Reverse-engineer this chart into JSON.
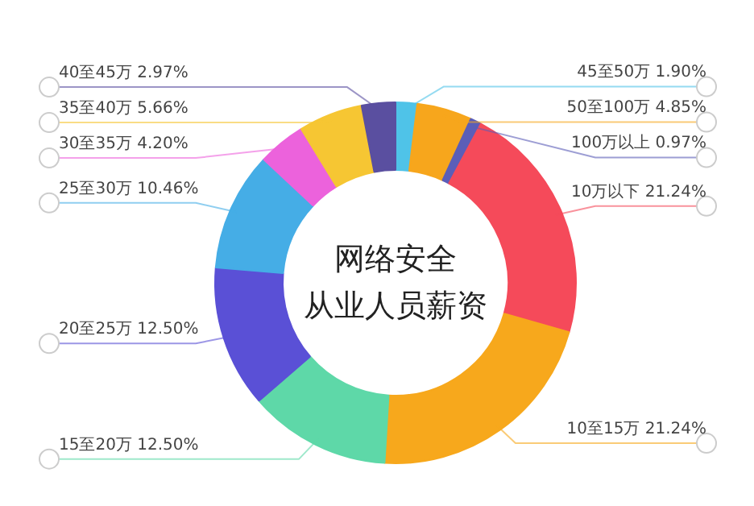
{
  "chart_data": {
    "type": "donut",
    "title": "网络安全从业人员薪资",
    "categories": [
      "45至50万",
      "50至100万",
      "100万以上",
      "10万以下",
      "10至15万",
      "15至20万",
      "20至25万",
      "25至30万",
      "30至35万",
      "35至40万",
      "40至45万"
    ],
    "values": [
      1.9,
      4.85,
      0.97,
      21.24,
      21.24,
      12.5,
      12.5,
      10.46,
      4.2,
      5.66,
      2.97
    ],
    "value_labels": [
      "1.90%",
      "4.85%",
      "0.97%",
      "21.24%",
      "21.24%",
      "12.50%",
      "12.50%",
      "10.46%",
      "4.20%",
      "5.66%",
      "2.97%"
    ],
    "colors": [
      "#4fc3e8",
      "#f7a61c",
      "#5b5eb8",
      "#f54a5a",
      "#f7a81c",
      "#5ed8a8",
      "#5a50d6",
      "#45ade6",
      "#ec62dc",
      "#f6c633",
      "#5a4fa0"
    ]
  }
}
